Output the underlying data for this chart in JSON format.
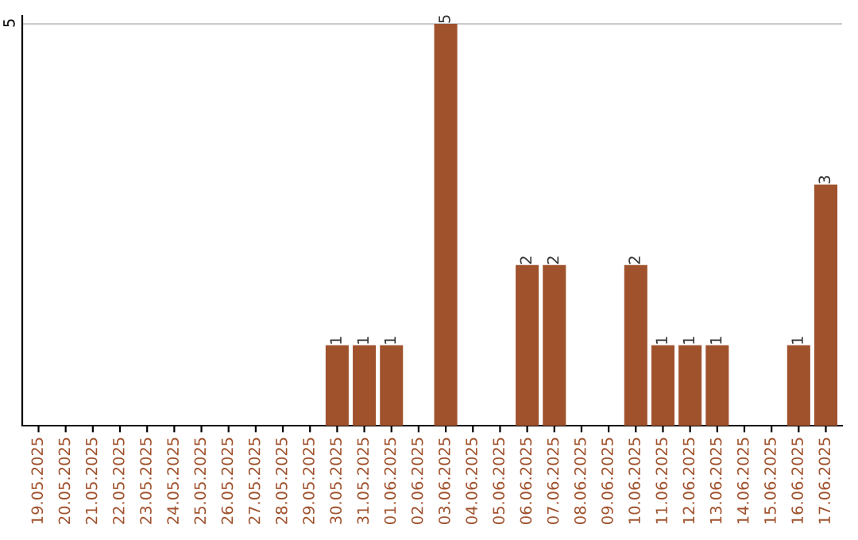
{
  "chart_data": {
    "type": "bar",
    "categories": [
      "19.05.2025",
      "20.05.2025",
      "21.05.2025",
      "22.05.2025",
      "23.05.2025",
      "24.05.2025",
      "25.05.2025",
      "26.05.2025",
      "27.05.2025",
      "28.05.2025",
      "29.05.2025",
      "30.05.2025",
      "31.05.2025",
      "01.06.2025",
      "02.06.2025",
      "03.06.2025",
      "04.06.2025",
      "05.06.2025",
      "06.06.2025",
      "07.06.2025",
      "08.06.2025",
      "09.06.2025",
      "10.06.2025",
      "11.06.2025",
      "12.06.2025",
      "13.06.2025",
      "14.06.2025",
      "15.06.2025",
      "16.06.2025",
      "17.06.2025"
    ],
    "values": [
      0,
      0,
      0,
      0,
      0,
      0,
      0,
      0,
      0,
      0,
      0,
      1,
      1,
      1,
      0,
      5,
      0,
      0,
      2,
      2,
      0,
      0,
      2,
      1,
      1,
      1,
      0,
      0,
      1,
      3
    ],
    "value_labels": [
      null,
      null,
      null,
      null,
      null,
      null,
      null,
      null,
      null,
      null,
      null,
      "1",
      "1",
      "1",
      null,
      "5",
      null,
      null,
      "2",
      "2",
      null,
      null,
      "2",
      "1",
      "1",
      "1",
      null,
      null,
      "1",
      "3"
    ],
    "color": "#a0522d",
    "ylim": [
      0,
      5.1
    ],
    "yticks": [
      5
    ],
    "grid": "y"
  }
}
